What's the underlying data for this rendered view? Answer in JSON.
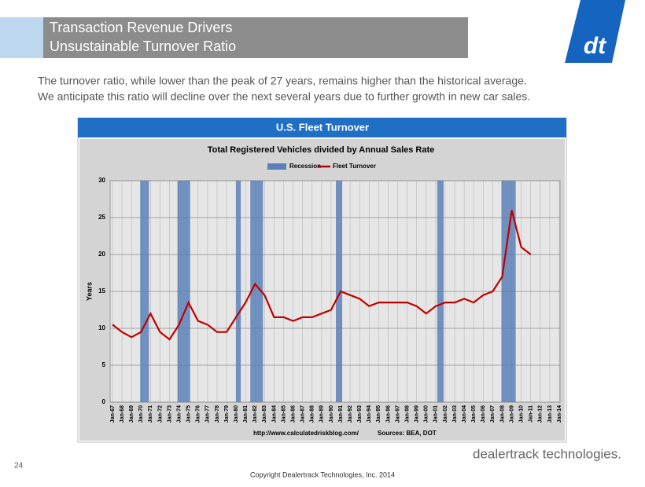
{
  "header": {
    "title": "Transaction Revenue Drivers",
    "subtitle": "Unsustainable Turnover Ratio"
  },
  "body": [
    "The turnover ratio, while lower than the peak of 27 years, remains higher than the historical average.",
    "We anticipate this ratio will decline over the next several years due to further growth in new car sales."
  ],
  "panel_title": "U.S. Fleet Turnover",
  "chart_data": {
    "type": "line",
    "title": "Total Registered Vehicles divided by Annual Sales Rate",
    "y_label": "Years",
    "categories": [
      "Jan-67",
      "Jan-68",
      "Jan-69",
      "Jan-70",
      "Jan-71",
      "Jan-72",
      "Jan-73",
      "Jan-74",
      "Jan-75",
      "Jan-76",
      "Jan-77",
      "Jan-78",
      "Jan-79",
      "Jan-80",
      "Jan-81",
      "Jan-82",
      "Jan-83",
      "Jan-84",
      "Jan-85",
      "Jan-86",
      "Jan-87",
      "Jan-88",
      "Jan-89",
      "Jan-90",
      "Jan-91",
      "Jan-92",
      "Jan-93",
      "Jan-94",
      "Jan-95",
      "Jan-96",
      "Jan-97",
      "Jan-98",
      "Jan-99",
      "Jan-00",
      "Jan-01",
      "Jan-02",
      "Jan-03",
      "Jan-04",
      "Jan-05",
      "Jan-06",
      "Jan-07",
      "Jan-08",
      "Jan-09",
      "Jan-10",
      "Jan-11",
      "Jan-12",
      "Jan-13",
      "Jan-14"
    ],
    "series": [
      {
        "name": "Fleet Turnover",
        "color": "#c00000",
        "values": [
          10.5,
          9.5,
          8.8,
          9.5,
          12,
          9.5,
          8.5,
          10.5,
          13.5,
          11,
          10.5,
          9.5,
          9.5,
          11.5,
          13.5,
          16,
          14.5,
          11.5,
          11.5,
          11,
          11.5,
          11.5,
          12,
          12.5,
          15,
          14.5,
          14,
          13,
          13.5,
          13.5,
          13.5,
          13.5,
          13,
          12,
          13,
          13.5,
          13.5,
          14,
          13.5,
          14.5,
          15,
          17,
          26,
          21,
          20,
          null,
          null,
          null
        ]
      }
    ],
    "bands": {
      "name": "Recession",
      "color": "#5b80b9",
      "periods": [
        [
          "Dec-69",
          "Nov-70"
        ],
        [
          "Nov-73",
          "Mar-75"
        ],
        [
          "Jan-80",
          "Jul-80"
        ],
        [
          "Jul-81",
          "Nov-82"
        ],
        [
          "Jul-90",
          "Mar-91"
        ],
        [
          "Mar-01",
          "Nov-01"
        ],
        [
          "Dec-07",
          "Jun-09"
        ]
      ]
    },
    "ylim": [
      0,
      30
    ],
    "yticks": [
      0,
      5,
      10,
      15,
      20,
      25,
      30
    ],
    "grid": true,
    "source_url": "http://www.calculatedriskblog.com/",
    "sources": "Sources: BEA, DOT"
  },
  "footer": {
    "page": "24",
    "copyright": "Copyright Dealertrack Technologies, Inc. 2014",
    "brand": "dealertrack technologies."
  }
}
